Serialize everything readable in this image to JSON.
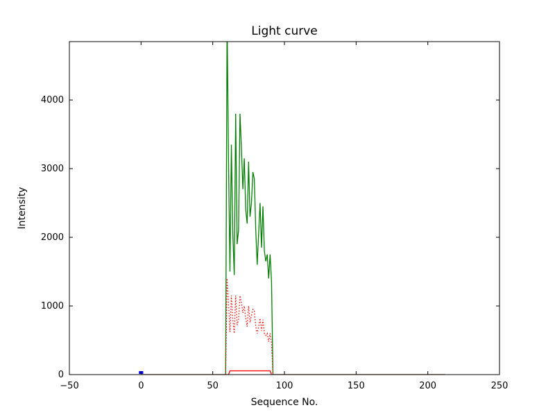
{
  "chart_data": {
    "type": "line",
    "title": "Light curve",
    "xlabel": "Sequence No.",
    "ylabel": "Intensity",
    "xlim": [
      -50,
      250
    ],
    "ylim": [
      0,
      4850
    ],
    "grid": false,
    "legend": null,
    "background_color": "#ffffff",
    "axis_color": "#000000",
    "xticks": {
      "values": [
        -50,
        0,
        50,
        100,
        150,
        200,
        250
      ],
      "labels": [
        "−50",
        "0",
        "50",
        "100",
        "150",
        "200",
        "250"
      ]
    },
    "yticks": {
      "values": [
        0,
        1000,
        2000,
        3000,
        4000
      ],
      "labels": [
        "0",
        "1000",
        "2000",
        "3000",
        "4000"
      ]
    },
    "series": [
      {
        "name": "intensity-green-solid",
        "color": "#007f00",
        "style": "solid",
        "width": 1.3,
        "points": [
          [
            0,
            0
          ],
          [
            59,
            0
          ],
          [
            60,
            5200
          ],
          [
            61,
            3100
          ],
          [
            62,
            1500
          ],
          [
            63,
            3350
          ],
          [
            64,
            2050
          ],
          [
            65,
            1450
          ],
          [
            66,
            3800
          ],
          [
            67,
            1900
          ],
          [
            68,
            2100
          ],
          [
            69,
            3800
          ],
          [
            70,
            3300
          ],
          [
            71,
            2700
          ],
          [
            72,
            3150
          ],
          [
            73,
            2400
          ],
          [
            74,
            2200
          ],
          [
            75,
            3100
          ],
          [
            76,
            2300
          ],
          [
            77,
            2500
          ],
          [
            78,
            2950
          ],
          [
            79,
            2850
          ],
          [
            80,
            2100
          ],
          [
            81,
            1600
          ],
          [
            82,
            2050
          ],
          [
            83,
            2500
          ],
          [
            84,
            1850
          ],
          [
            85,
            2450
          ],
          [
            86,
            1800
          ],
          [
            87,
            1650
          ],
          [
            88,
            1750
          ],
          [
            89,
            1400
          ],
          [
            90,
            1750
          ],
          [
            91,
            1350
          ],
          [
            92,
            0
          ],
          [
            212,
            0
          ]
        ]
      },
      {
        "name": "background-red-dotted",
        "color": "#ff0000",
        "style": "dotted",
        "width": 1.3,
        "points": [
          [
            59,
            0
          ],
          [
            60,
            1400
          ],
          [
            61,
            1050
          ],
          [
            62,
            620
          ],
          [
            63,
            1150
          ],
          [
            64,
            800
          ],
          [
            65,
            600
          ],
          [
            66,
            1150
          ],
          [
            67,
            720
          ],
          [
            68,
            800
          ],
          [
            69,
            1150
          ],
          [
            70,
            1050
          ],
          [
            71,
            900
          ],
          [
            72,
            1000
          ],
          [
            73,
            820
          ],
          [
            74,
            700
          ],
          [
            75,
            1000
          ],
          [
            76,
            760
          ],
          [
            77,
            860
          ],
          [
            78,
            950
          ],
          [
            79,
            930
          ],
          [
            80,
            700
          ],
          [
            81,
            600
          ],
          [
            82,
            700
          ],
          [
            83,
            820
          ],
          [
            84,
            640
          ],
          [
            85,
            800
          ],
          [
            86,
            600
          ],
          [
            87,
            570
          ],
          [
            88,
            600
          ],
          [
            89,
            480
          ],
          [
            90,
            600
          ],
          [
            91,
            450
          ],
          [
            92,
            0
          ]
        ]
      },
      {
        "name": "baseline-red-solid",
        "color": "#ff0000",
        "style": "solid",
        "width": 1.3,
        "points": [
          [
            0,
            0
          ],
          [
            61,
            0
          ],
          [
            62,
            55
          ],
          [
            90,
            55
          ],
          [
            91,
            0
          ],
          [
            212,
            0
          ]
        ]
      },
      {
        "name": "marker-blue",
        "color": "#0000ff",
        "style": "solid",
        "width": 4,
        "points": [
          [
            -1.5,
            30
          ],
          [
            1.5,
            30
          ]
        ]
      }
    ]
  }
}
